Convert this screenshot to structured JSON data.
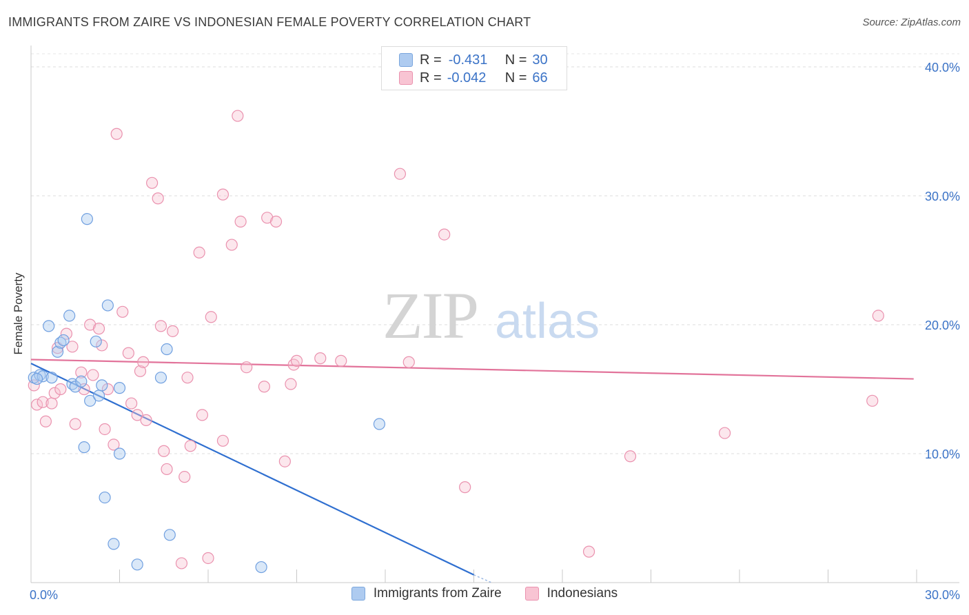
{
  "title": "IMMIGRANTS FROM ZAIRE VS INDONESIAN FEMALE POVERTY CORRELATION CHART",
  "source": "Source: ZipAtlas.com",
  "watermark": {
    "zip": "ZIP",
    "atlas": "atlas"
  },
  "legend_stats": [
    {
      "r_label": "R =",
      "r_value": "-0.431",
      "n_label": "N =",
      "n_value": "30",
      "color": "#aecbf0",
      "border": "#7aa6dd"
    },
    {
      "r_label": "R =",
      "r_value": "-0.042",
      "n_label": "N =",
      "n_value": "66",
      "color": "#f8c4d3",
      "border": "#ea91ae"
    }
  ],
  "bottom_legend": [
    {
      "label": "Immigrants from Zaire",
      "color": "#aecbf0",
      "border": "#7aa6dd"
    },
    {
      "label": "Indonesians",
      "color": "#f8c4d3",
      "border": "#ea91ae"
    }
  ],
  "chart_data": {
    "type": "scatter",
    "xlabel": "",
    "ylabel": "Female Poverty",
    "xlim": [
      0,
      30
    ],
    "ylim": [
      0,
      40
    ],
    "x_tick_labels": [
      {
        "value": 0,
        "label": "0.0%"
      },
      {
        "value": 30,
        "label": "30.0%"
      }
    ],
    "y_tick_labels": [
      {
        "value": 10,
        "label": "10.0%"
      },
      {
        "value": 20,
        "label": "20.0%"
      },
      {
        "value": 30,
        "label": "30.0%"
      },
      {
        "value": 40,
        "label": "40.0%"
      }
    ],
    "grid": true,
    "legend_position": "top-center",
    "series": [
      {
        "name": "Immigrants from Zaire",
        "color": "#6f9fe0",
        "fill": "rgba(174,203,240,0.45)",
        "line_color": "#2f6fd0",
        "trend": {
          "x": [
            0,
            15.0
          ],
          "y": [
            17.0,
            0.6
          ]
        },
        "trend_dashed": {
          "x": [
            15.0,
            15.6
          ],
          "y": [
            0.6,
            0.0
          ]
        },
        "points": [
          [
            0.1,
            15.9
          ],
          [
            0.3,
            16.1
          ],
          [
            0.4,
            16.0
          ],
          [
            0.7,
            15.9
          ],
          [
            0.6,
            19.9
          ],
          [
            0.9,
            17.9
          ],
          [
            1.0,
            18.6
          ],
          [
            1.1,
            18.8
          ],
          [
            1.3,
            20.7
          ],
          [
            1.4,
            15.4
          ],
          [
            1.5,
            15.2
          ],
          [
            1.7,
            15.6
          ],
          [
            1.8,
            10.5
          ],
          [
            1.9,
            28.2
          ],
          [
            2.0,
            14.1
          ],
          [
            2.2,
            18.7
          ],
          [
            2.3,
            14.5
          ],
          [
            2.4,
            15.3
          ],
          [
            2.5,
            6.6
          ],
          [
            2.6,
            21.5
          ],
          [
            2.8,
            3.0
          ],
          [
            3.0,
            15.1
          ],
          [
            3.0,
            10.0
          ],
          [
            3.6,
            1.4
          ],
          [
            4.4,
            15.9
          ],
          [
            4.6,
            18.1
          ],
          [
            4.7,
            3.7
          ],
          [
            7.8,
            1.2
          ],
          [
            11.8,
            12.3
          ],
          [
            0.2,
            15.8
          ]
        ]
      },
      {
        "name": "Indonesians",
        "color": "#ea91ae",
        "fill": "rgba(248,196,211,0.4)",
        "line_color": "#e2739a",
        "trend": {
          "x": [
            0,
            29.9
          ],
          "y": [
            17.3,
            15.8
          ]
        },
        "points": [
          [
            0.1,
            15.3
          ],
          [
            0.2,
            13.8
          ],
          [
            0.4,
            14.0
          ],
          [
            0.5,
            12.5
          ],
          [
            0.7,
            13.9
          ],
          [
            0.8,
            14.7
          ],
          [
            0.9,
            18.2
          ],
          [
            1.0,
            15.0
          ],
          [
            1.2,
            19.3
          ],
          [
            1.4,
            18.3
          ],
          [
            1.5,
            12.3
          ],
          [
            1.7,
            16.3
          ],
          [
            1.8,
            15.0
          ],
          [
            2.0,
            20.0
          ],
          [
            2.1,
            16.1
          ],
          [
            2.3,
            19.7
          ],
          [
            2.4,
            18.4
          ],
          [
            2.5,
            11.9
          ],
          [
            2.6,
            15.0
          ],
          [
            2.8,
            10.7
          ],
          [
            2.9,
            34.8
          ],
          [
            3.1,
            21.0
          ],
          [
            3.3,
            17.8
          ],
          [
            3.4,
            13.9
          ],
          [
            3.6,
            13.0
          ],
          [
            3.7,
            16.4
          ],
          [
            3.8,
            17.1
          ],
          [
            3.9,
            12.6
          ],
          [
            4.1,
            31.0
          ],
          [
            4.3,
            29.8
          ],
          [
            4.4,
            19.9
          ],
          [
            4.5,
            10.2
          ],
          [
            4.6,
            8.8
          ],
          [
            4.8,
            19.5
          ],
          [
            5.1,
            1.5
          ],
          [
            5.2,
            8.2
          ],
          [
            5.3,
            15.9
          ],
          [
            5.4,
            10.6
          ],
          [
            5.7,
            25.6
          ],
          [
            5.8,
            13.0
          ],
          [
            6.0,
            1.9
          ],
          [
            6.1,
            20.6
          ],
          [
            6.5,
            30.1
          ],
          [
            6.5,
            11.0
          ],
          [
            6.8,
            26.2
          ],
          [
            7.0,
            36.2
          ],
          [
            7.1,
            28.0
          ],
          [
            7.3,
            16.7
          ],
          [
            7.9,
            15.2
          ],
          [
            8.0,
            28.3
          ],
          [
            8.3,
            28.0
          ],
          [
            8.6,
            9.4
          ],
          [
            8.8,
            15.4
          ],
          [
            8.9,
            16.9
          ],
          [
            9.0,
            17.2
          ],
          [
            9.8,
            17.4
          ],
          [
            10.5,
            17.2
          ],
          [
            12.5,
            31.7
          ],
          [
            12.8,
            17.1
          ],
          [
            14.0,
            27.0
          ],
          [
            14.7,
            7.4
          ],
          [
            18.9,
            2.4
          ],
          [
            20.3,
            9.8
          ],
          [
            23.5,
            11.6
          ],
          [
            28.5,
            14.1
          ],
          [
            28.7,
            20.7
          ]
        ]
      }
    ]
  }
}
